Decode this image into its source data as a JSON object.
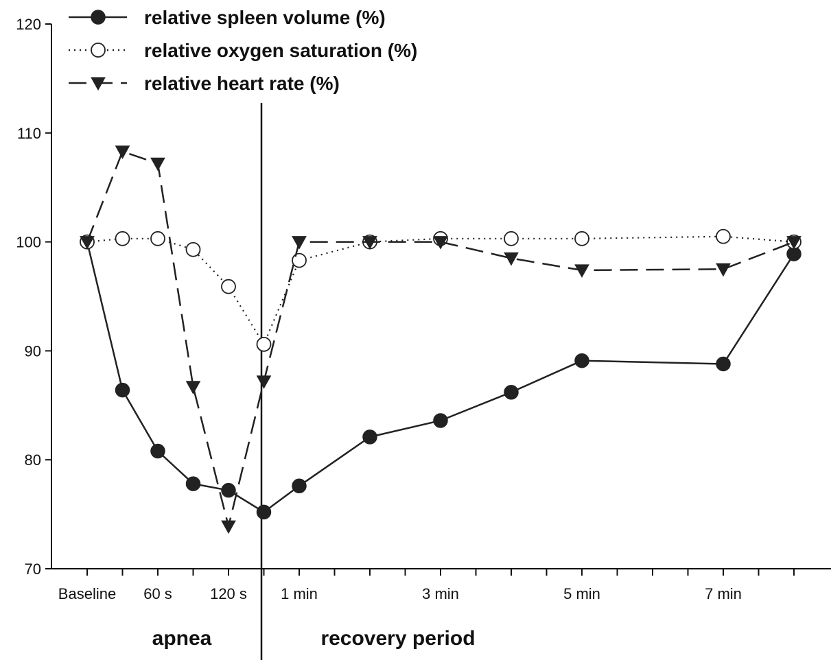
{
  "chart_data": {
    "type": "line",
    "title": "",
    "xlabel": "",
    "ylabel": "",
    "ylim": [
      70,
      120
    ],
    "yticks": [
      70,
      80,
      90,
      100,
      110,
      120
    ],
    "x_ticks": [
      "Baseline",
      "",
      "60 s",
      "",
      "120 s",
      "",
      "1 min",
      "",
      "",
      "",
      "3 min",
      "",
      "",
      "",
      "5 min",
      "",
      "",
      "",
      "7 min",
      "",
      ""
    ],
    "phases": [
      "apnea",
      "recovery period"
    ],
    "grid": false,
    "legend_position": "top-left",
    "series": [
      {
        "name": "relative spleen volume (%)",
        "line_style": "solid",
        "marker": "filled-circle",
        "points": [
          [
            0,
            100
          ],
          [
            1,
            86.4
          ],
          [
            2,
            80.8
          ],
          [
            3,
            77.8
          ],
          [
            4,
            77.2
          ],
          [
            5,
            75.2
          ],
          [
            6,
            77.6
          ],
          [
            8,
            82.1
          ],
          [
            10,
            83.6
          ],
          [
            12,
            86.2
          ],
          [
            14,
            89.1
          ],
          [
            18,
            88.8
          ],
          [
            20,
            98.9
          ]
        ]
      },
      {
        "name": "relative oxygen saturation (%)",
        "line_style": "dotted",
        "marker": "open-circle",
        "points": [
          [
            0,
            100
          ],
          [
            1,
            100.3
          ],
          [
            2,
            100.3
          ],
          [
            3,
            99.3
          ],
          [
            4,
            95.9
          ],
          [
            5,
            90.6
          ],
          [
            6,
            98.3
          ],
          [
            8,
            100
          ],
          [
            10,
            100.3
          ],
          [
            12,
            100.3
          ],
          [
            14,
            100.3
          ],
          [
            18,
            100.5
          ],
          [
            20,
            100
          ]
        ]
      },
      {
        "name": "relative heart rate (%)",
        "line_style": "dashed",
        "marker": "filled-triangle-down",
        "points": [
          [
            0,
            100
          ],
          [
            1,
            108.3
          ],
          [
            2,
            107.2
          ],
          [
            3,
            86.7
          ],
          [
            4,
            73.9
          ],
          [
            5,
            87.2
          ],
          [
            6,
            100
          ],
          [
            8,
            100
          ],
          [
            10,
            100
          ],
          [
            12,
            98.5
          ],
          [
            14,
            97.4
          ],
          [
            18,
            97.5
          ],
          [
            20,
            100
          ]
        ]
      }
    ]
  }
}
